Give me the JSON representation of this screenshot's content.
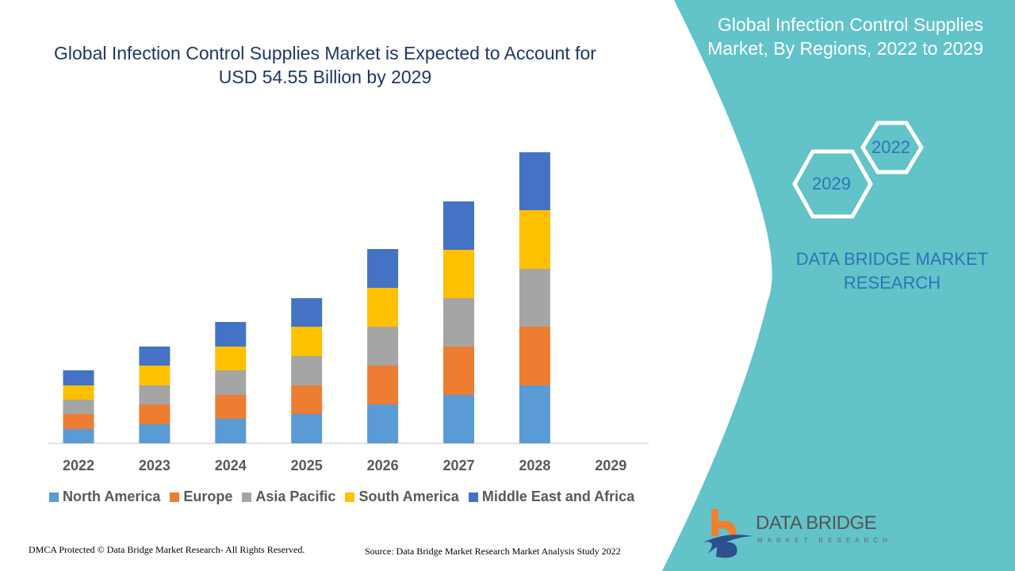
{
  "title": "Global Infection Control Supplies Market is Expected to Account for USD 54.55 Billion by 2029",
  "side_panel": {
    "title": "Global Infection Control Supplies Market, By Regions, 2022 to 2029",
    "hex_labels": [
      "2022",
      "2029"
    ],
    "brand": "DATA BRIDGE MARKET RESEARCH"
  },
  "logo": {
    "name": "DATA BRIDGE",
    "sub": "MARKET RESEARCH"
  },
  "footer": {
    "left": "DMCA Protected © Data Bridge Market Research- All Rights Reserved.",
    "right": "Source: Data Bridge Market Research Market Analysis Study 2022"
  },
  "colors": {
    "panel": "#62c3c9",
    "title": "#1f3864"
  },
  "chart_data": {
    "type": "bar",
    "stacked": true,
    "categories": [
      "2022",
      "2023",
      "2024",
      "2025",
      "2026",
      "2027",
      "2028",
      "2029"
    ],
    "series": [
      {
        "name": "North America",
        "color": "#5b9bd5",
        "values": [
          1.8,
          2.4,
          3.1,
          3.7,
          4.9,
          6.1,
          7.3,
          null
        ]
      },
      {
        "name": "Europe",
        "color": "#ed7d31",
        "values": [
          1.9,
          2.5,
          3.0,
          3.6,
          4.9,
          6.1,
          7.4,
          null
        ]
      },
      {
        "name": "Asia Pacific",
        "color": "#a5a5a5",
        "values": [
          1.8,
          2.4,
          3.1,
          3.7,
          4.9,
          6.1,
          7.3,
          null
        ]
      },
      {
        "name": "South America",
        "color": "#ffc000",
        "values": [
          1.8,
          2.5,
          3.0,
          3.7,
          4.9,
          6.1,
          7.4,
          null
        ]
      },
      {
        "name": "Middle East and Africa",
        "color": "#4472c4",
        "values": [
          1.9,
          2.4,
          3.1,
          3.6,
          4.9,
          6.1,
          7.3,
          null
        ]
      }
    ],
    "xlabel": "",
    "ylabel": "",
    "y_axis_shown": false,
    "grid": false,
    "legend_position": "bottom"
  }
}
